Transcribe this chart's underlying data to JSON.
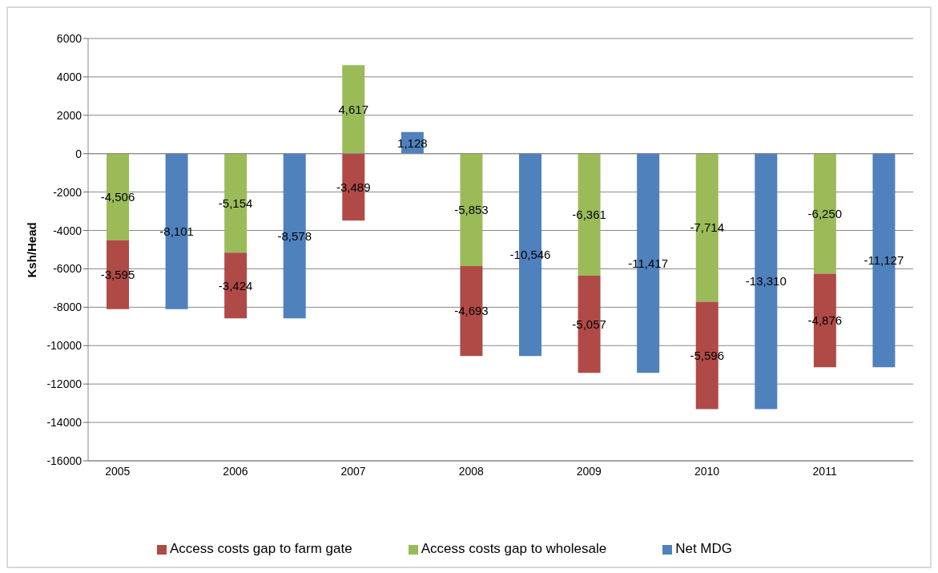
{
  "chart_data": {
    "type": "bar",
    "stacked": true,
    "ylabel": "Ksh/Head",
    "categories": [
      "2005",
      null,
      "2006",
      null,
      "2007",
      null,
      "2008",
      null,
      "2009",
      null,
      "2010",
      null,
      "2011",
      null
    ],
    "series": [
      {
        "name": "Access costs gap to wholesale",
        "color": "#9bbb59",
        "values": [
          -4506,
          null,
          -5154,
          null,
          4617,
          null,
          -5853,
          null,
          -6361,
          null,
          -7714,
          null,
          -6250,
          null
        ],
        "value_labels": [
          "-4,506",
          null,
          "-5,154",
          null,
          "4,617",
          null,
          "-5,853",
          null,
          "-6,361",
          null,
          "-7,714",
          null,
          "-6,250",
          null
        ]
      },
      {
        "name": "Access costs gap to farm gate",
        "color": "#b04a47",
        "values": [
          -3595,
          null,
          -3424,
          null,
          -3489,
          null,
          -4693,
          null,
          -5057,
          null,
          -5596,
          null,
          -4876,
          null
        ],
        "value_labels": [
          "-3,595",
          null,
          "-3,424",
          null,
          "-3,489",
          null,
          "-4,693",
          null,
          "-5,057",
          null,
          "-5,596",
          null,
          "-4,876",
          null
        ]
      },
      {
        "name": "Net MDG",
        "color": "#4f81bd",
        "values": [
          null,
          -8101,
          null,
          -8578,
          null,
          1128,
          null,
          -10546,
          null,
          -11417,
          null,
          -13310,
          null,
          -11127
        ],
        "value_labels": [
          null,
          "-8,101",
          null,
          "-8,578",
          null,
          "1,128",
          null,
          "-10,546",
          null,
          "-11,417",
          null,
          "-13,310",
          null,
          "-11,127"
        ]
      }
    ],
    "ylim": [
      -16000,
      6000
    ],
    "yticks": [
      -16000,
      -14000,
      -12000,
      -10000,
      -8000,
      -6000,
      -4000,
      -2000,
      0,
      2000,
      4000,
      6000
    ],
    "grid": "y",
    "legend": "bottom"
  }
}
